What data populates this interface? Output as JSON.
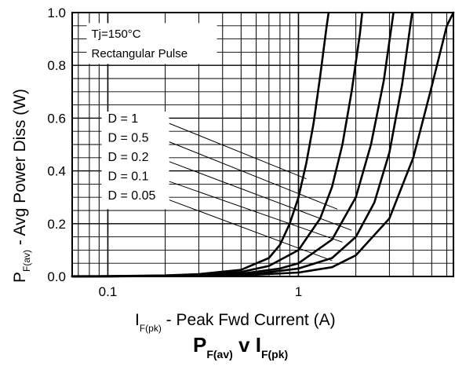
{
  "chart_data": {
    "type": "line",
    "title": "",
    "caption": {
      "main1": "P",
      "sub1": "F(av)",
      "mid": " v I",
      "sub2": "F(pk)"
    },
    "xlabel": {
      "main": "I",
      "sub": "F(pk)",
      "rest": " - Peak Fwd Current (A)"
    },
    "ylabel": {
      "main": "P",
      "sub": "F(av)",
      "rest": " - Avg Power Diss (W)"
    },
    "x_scale": "log",
    "xlim": [
      0.065,
      6.5
    ],
    "ylim": [
      0,
      1.0
    ],
    "x_ticks": [
      {
        "value": 0.1,
        "label": "0.1"
      },
      {
        "value": 1,
        "label": "1"
      }
    ],
    "y_ticks": [
      {
        "value": 0.0,
        "label": "0.0"
      },
      {
        "value": 0.2,
        "label": "0.2"
      },
      {
        "value": 0.4,
        "label": "0.4"
      },
      {
        "value": 0.6,
        "label": "0.6"
      },
      {
        "value": 0.8,
        "label": "0.8"
      },
      {
        "value": 1.0,
        "label": "1.0"
      }
    ],
    "grid": true,
    "conditions": [
      "Tj=150°C",
      "Rectangular Pulse"
    ],
    "series": [
      {
        "name": "D = 1",
        "points": [
          [
            0.065,
            0.0008
          ],
          [
            0.1,
            0.0013
          ],
          [
            0.2,
            0.004
          ],
          [
            0.3,
            0.009
          ],
          [
            0.5,
            0.025
          ],
          [
            0.7,
            0.07
          ],
          [
            0.8,
            0.12
          ],
          [
            0.9,
            0.2
          ],
          [
            1.0,
            0.3
          ],
          [
            1.1,
            0.43
          ],
          [
            1.2,
            0.58
          ],
          [
            1.3,
            0.76
          ],
          [
            1.4,
            0.94
          ],
          [
            1.44,
            1.0
          ]
        ]
      },
      {
        "name": "D = 0.5",
        "points": [
          [
            0.065,
            0.0006
          ],
          [
            0.1,
            0.001
          ],
          [
            0.2,
            0.003
          ],
          [
            0.3,
            0.006
          ],
          [
            0.5,
            0.017
          ],
          [
            0.7,
            0.04
          ],
          [
            1.0,
            0.1
          ],
          [
            1.3,
            0.22
          ],
          [
            1.5,
            0.34
          ],
          [
            1.7,
            0.5
          ],
          [
            1.9,
            0.7
          ],
          [
            2.1,
            0.92
          ],
          [
            2.16,
            1.0
          ]
        ]
      },
      {
        "name": "D = 0.2",
        "points": [
          [
            0.065,
            0.0004
          ],
          [
            0.1,
            0.0007
          ],
          [
            0.2,
            0.002
          ],
          [
            0.5,
            0.01
          ],
          [
            0.8,
            0.03
          ],
          [
            1.0,
            0.05
          ],
          [
            1.5,
            0.14
          ],
          [
            2.0,
            0.3
          ],
          [
            2.4,
            0.5
          ],
          [
            2.8,
            0.74
          ],
          [
            3.15,
            1.0
          ]
        ]
      },
      {
        "name": "D = 0.1",
        "points": [
          [
            0.065,
            0.0003
          ],
          [
            0.1,
            0.0005
          ],
          [
            0.3,
            0.003
          ],
          [
            0.6,
            0.01
          ],
          [
            1.0,
            0.03
          ],
          [
            1.5,
            0.07
          ],
          [
            2.0,
            0.15
          ],
          [
            2.5,
            0.28
          ],
          [
            3.0,
            0.47
          ],
          [
            3.5,
            0.73
          ],
          [
            3.95,
            1.0
          ]
        ]
      },
      {
        "name": "D = 0.05",
        "points": [
          [
            0.065,
            0.0002
          ],
          [
            0.1,
            0.0004
          ],
          [
            0.5,
            0.004
          ],
          [
            1.0,
            0.015
          ],
          [
            1.5,
            0.035
          ],
          [
            2.0,
            0.08
          ],
          [
            3.0,
            0.22
          ],
          [
            4.0,
            0.45
          ],
          [
            5.0,
            0.72
          ],
          [
            6.0,
            0.95
          ],
          [
            6.5,
            1.0
          ]
        ]
      }
    ],
    "labels": [
      {
        "text": "D = 1",
        "leader": [
          [
            0.21,
            0.58
          ],
          [
            1.1,
            0.37
          ]
        ]
      },
      {
        "text": "D = 0.5",
        "leader": [
          [
            0.21,
            0.51
          ],
          [
            1.6,
            0.255
          ]
        ]
      },
      {
        "text": "D = 0.2",
        "leader": [
          [
            0.21,
            0.435
          ],
          [
            1.9,
            0.175
          ]
        ]
      },
      {
        "text": "D = 0.1",
        "leader": [
          [
            0.21,
            0.36
          ],
          [
            1.7,
            0.13
          ]
        ]
      },
      {
        "text": "D = 0.05",
        "leader": [
          [
            0.21,
            0.29
          ],
          [
            1.5,
            0.06
          ]
        ]
      }
    ]
  }
}
